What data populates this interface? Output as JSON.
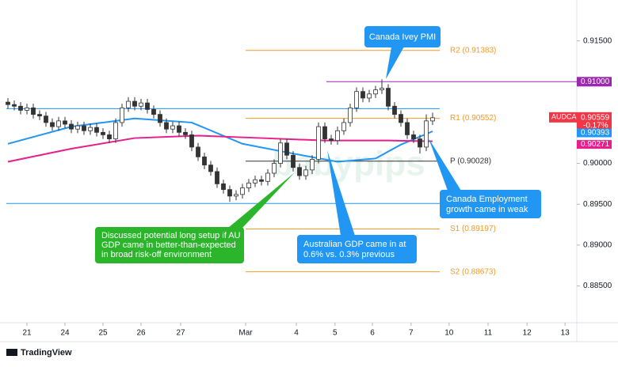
{
  "chart_data": {
    "type": "candlestick",
    "symbol": "AUDCAD",
    "change": "-0.17%",
    "watermark": "babypips",
    "brand": "TradingView",
    "up_color": "#ffffff",
    "down_color": "#333333",
    "wick_color": "#333333",
    "x": [
      0,
      1,
      2,
      3,
      4,
      5,
      6,
      7,
      8,
      9,
      10,
      11,
      12,
      13,
      14,
      15,
      16,
      17,
      18,
      19,
      20,
      21,
      22,
      23,
      24,
      25,
      26,
      27,
      28,
      29,
      30,
      31,
      32,
      33,
      34,
      35,
      36,
      37,
      38,
      39,
      40,
      41,
      42,
      43,
      44,
      45,
      46,
      47,
      48,
      49,
      50,
      51,
      52,
      53,
      54,
      55,
      56,
      57,
      58,
      59,
      60,
      61,
      62,
      63,
      64,
      65,
      66,
      67
    ],
    "ohlc": {
      "open": [
        0.9075,
        0.9072,
        0.907,
        0.9065,
        0.9068,
        0.906,
        0.9058,
        0.905,
        0.9045,
        0.9052,
        0.9048,
        0.9042,
        0.9046,
        0.904,
        0.9044,
        0.9038,
        0.9035,
        0.903,
        0.905,
        0.9068,
        0.9076,
        0.907,
        0.9074,
        0.9066,
        0.906,
        0.905,
        0.9042,
        0.9046,
        0.9038,
        0.9035,
        0.902,
        0.9008,
        0.8998,
        0.899,
        0.8975,
        0.8968,
        0.896,
        0.8962,
        0.897,
        0.8976,
        0.898,
        0.8978,
        0.8988,
        0.9,
        0.9025,
        0.901,
        0.8995,
        0.8985,
        0.8992,
        0.9005,
        0.9045,
        0.903,
        0.9028,
        0.904,
        0.905,
        0.9068,
        0.9088,
        0.908,
        0.9085,
        0.909,
        0.9092,
        0.907,
        0.906,
        0.905,
        0.9035,
        0.903,
        0.902,
        0.9052
      ],
      "high": [
        0.908,
        0.9077,
        0.9075,
        0.9073,
        0.9073,
        0.9065,
        0.9063,
        0.9055,
        0.9057,
        0.9057,
        0.9053,
        0.9051,
        0.9051,
        0.9049,
        0.9049,
        0.9043,
        0.904,
        0.9055,
        0.9073,
        0.9081,
        0.9081,
        0.9079,
        0.9079,
        0.9071,
        0.9065,
        0.9055,
        0.9051,
        0.9051,
        0.9043,
        0.904,
        0.9025,
        0.9013,
        0.9003,
        0.8995,
        0.898,
        0.8973,
        0.8967,
        0.8975,
        0.8981,
        0.8985,
        0.8985,
        0.8993,
        0.9005,
        0.903,
        0.903,
        0.9015,
        0.9,
        0.8997,
        0.901,
        0.905,
        0.905,
        0.9035,
        0.9045,
        0.9055,
        0.9073,
        0.9093,
        0.9093,
        0.909,
        0.9095,
        0.9103,
        0.9097,
        0.9075,
        0.9065,
        0.9055,
        0.904,
        0.9035,
        0.906,
        0.9062
      ],
      "low": [
        0.9067,
        0.9065,
        0.906,
        0.906,
        0.9055,
        0.9053,
        0.9045,
        0.904,
        0.904,
        0.9043,
        0.9037,
        0.9037,
        0.9035,
        0.9035,
        0.9033,
        0.903,
        0.9025,
        0.9025,
        0.9045,
        0.9063,
        0.9065,
        0.9065,
        0.9061,
        0.9055,
        0.9045,
        0.9037,
        0.9037,
        0.9033,
        0.903,
        0.9015,
        0.9003,
        0.8993,
        0.8985,
        0.897,
        0.8963,
        0.8953,
        0.8955,
        0.8957,
        0.8965,
        0.8971,
        0.8973,
        0.8973,
        0.8983,
        0.8995,
        0.9005,
        0.899,
        0.898,
        0.898,
        0.8987,
        0.9,
        0.9025,
        0.9023,
        0.9023,
        0.9035,
        0.9045,
        0.9063,
        0.9075,
        0.9075,
        0.908,
        0.9085,
        0.9065,
        0.9055,
        0.9045,
        0.903,
        0.9025,
        0.9012,
        0.9015,
        0.9047
      ],
      "close": [
        0.9072,
        0.907,
        0.9065,
        0.9068,
        0.906,
        0.9058,
        0.905,
        0.9045,
        0.9052,
        0.9048,
        0.9042,
        0.9046,
        0.904,
        0.9044,
        0.9038,
        0.9035,
        0.903,
        0.905,
        0.9068,
        0.9076,
        0.907,
        0.9074,
        0.9066,
        0.906,
        0.905,
        0.9042,
        0.9046,
        0.9038,
        0.9035,
        0.902,
        0.9008,
        0.8998,
        0.899,
        0.8975,
        0.8968,
        0.896,
        0.8962,
        0.897,
        0.8976,
        0.898,
        0.8978,
        0.8988,
        0.9,
        0.9025,
        0.901,
        0.8995,
        0.8985,
        0.8992,
        0.9005,
        0.9045,
        0.903,
        0.9028,
        0.904,
        0.905,
        0.9068,
        0.9088,
        0.908,
        0.9085,
        0.909,
        0.9092,
        0.907,
        0.906,
        0.905,
        0.9035,
        0.903,
        0.902,
        0.9052,
        0.90559
      ]
    },
    "last_price": 0.90559,
    "moving_averages": [
      {
        "color": "#2196f3",
        "x": [
          0,
          10,
          20,
          29,
          37,
          45,
          52,
          58,
          62,
          67
        ],
        "values": [
          0.9024,
          0.9045,
          0.9055,
          0.905,
          0.9024,
          0.9012,
          0.9002,
          0.9006,
          0.9023,
          0.90393
        ]
      },
      {
        "color": "#e91e8c",
        "x": [
          0,
          10,
          20,
          30,
          40,
          50,
          60,
          67
        ],
        "values": [
          0.9002,
          0.9018,
          0.9031,
          0.9034,
          0.9031,
          0.9028,
          0.9028,
          0.90271
        ]
      }
    ],
    "levels": [
      {
        "label": "R2 (0.91383)",
        "value": 0.91383,
        "color": "#f59a23"
      },
      {
        "label": "R1 (0.90552)",
        "value": 0.90552,
        "color": "#f59a23"
      },
      {
        "label": "P (0.90028)",
        "value": 0.90028,
        "color": "#333333"
      },
      {
        "label": "S1 (0.89197)",
        "value": 0.89197,
        "color": "#f59a23"
      },
      {
        "label": "S2 (0.88673)",
        "value": 0.88673,
        "color": "#f59a23"
      }
    ],
    "lines": [
      {
        "value": 0.9067,
        "color": "#2196f3"
      },
      {
        "value": 0.8951,
        "color": "#2196f3"
      },
      {
        "value": 0.91,
        "label": "0.91000",
        "color": "#9c27b0"
      }
    ],
    "xlim": [
      -0.25,
      89.75
    ],
    "xticks": [
      {
        "value": 3,
        "label": "21"
      },
      {
        "value": 9,
        "label": "24"
      },
      {
        "value": 15,
        "label": "25"
      },
      {
        "value": 21,
        "label": "26"
      },
      {
        "value": 27.25,
        "label": "27"
      },
      {
        "value": 37.5,
        "label": "Mar"
      },
      {
        "value": 45.5,
        "label": "4"
      },
      {
        "value": 51.6,
        "label": "5"
      },
      {
        "value": 57.5,
        "label": "6"
      },
      {
        "value": 63.6,
        "label": "7"
      },
      {
        "value": 69.6,
        "label": "10"
      },
      {
        "value": 75.75,
        "label": "11"
      },
      {
        "value": 81.9,
        "label": "12"
      },
      {
        "value": 87.9,
        "label": "13"
      }
    ],
    "ylim": [
      0.8805,
      0.92
    ],
    "yticks": [
      {
        "value": 0.915,
        "label": "0.91500"
      },
      {
        "value": 0.91,
        "label": "0.91000"
      },
      {
        "value": 0.905,
        "label": "0.90500"
      },
      {
        "value": 0.9,
        "label": "0.90000"
      },
      {
        "value": 0.895,
        "label": "0.89500"
      },
      {
        "value": 0.89,
        "label": "0.89000"
      },
      {
        "value": 0.885,
        "label": "0.88500"
      }
    ],
    "annotations": [
      {
        "lines": [
          "Canada Ivey PMI"
        ]
      },
      {
        "lines": [
          "Discussed potential long setup if AU",
          "GDP came in better-than-expected",
          "in broad risk-off environment"
        ]
      },
      {
        "lines": [
          "Australian GDP came in at",
          "0.6% vs. 0.3% previous"
        ]
      },
      {
        "lines": [
          "Canada Employment",
          "growth came in weak"
        ]
      }
    ]
  }
}
